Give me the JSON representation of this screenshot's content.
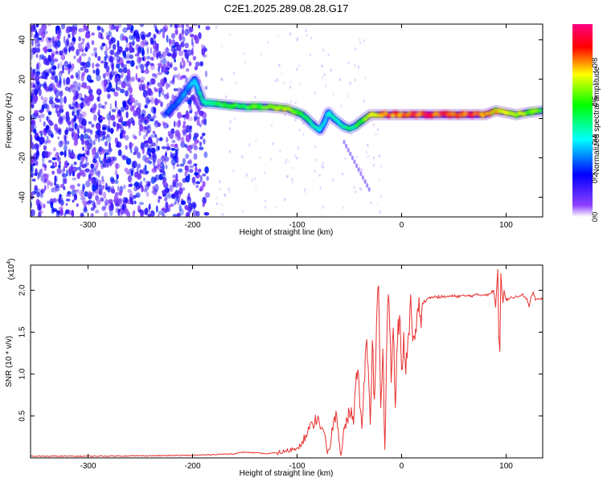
{
  "title": "C2E1.2025.289.08.28.G17",
  "chart_data": [
    {
      "type": "heatmap",
      "title": "C2E1.2025.289.08.28.G17",
      "xlabel": "Height of straight line (km)",
      "ylabel": "Frequency (Hz)",
      "xlim": [
        -355,
        135
      ],
      "ylim": [
        -50,
        48
      ],
      "xticks": [
        -300,
        -200,
        -100,
        0,
        100
      ],
      "xtick_labels": [
        "-300",
        "-200",
        "-100",
        "0",
        "100"
      ],
      "yticks": [
        -40,
        -20,
        0,
        20,
        40
      ],
      "ytick_labels": [
        "-40",
        "-20",
        "0",
        "20",
        "40"
      ],
      "colorbar": {
        "label": "Normalized spectral amplitude",
        "range": [
          0,
          1
        ],
        "ticks": [
          0,
          0.2,
          0.4,
          0.6,
          0.8
        ],
        "tick_labels": [
          "0.0",
          "0.2",
          "0.4",
          "0.6",
          "0.8"
        ],
        "colors": [
          "#ffffff",
          "#5000ff",
          "#0000ff",
          "#00ffff",
          "#00ff00",
          "#ffff00",
          "#ff0000",
          "#ff0080"
        ]
      },
      "track": {
        "x": [
          -225,
          -215,
          -205,
          -198,
          -190,
          -170,
          -150,
          -130,
          -110,
          -95,
          -85,
          -78,
          -74,
          -70,
          -65,
          -60,
          -55,
          -50,
          -45,
          -40,
          -30,
          -20,
          -10,
          0,
          20,
          40,
          60,
          80,
          90,
          100,
          110,
          120,
          135
        ],
        "y": [
          2,
          8,
          15,
          20,
          8,
          7,
          6,
          6,
          5,
          2,
          -3,
          -6,
          -2,
          3,
          0,
          -2,
          -4,
          -5,
          -4,
          -2,
          2,
          2,
          2,
          2,
          2,
          2,
          2,
          2,
          4,
          3,
          2,
          3,
          4
        ],
        "amplitude": [
          0.3,
          0.3,
          0.35,
          0.4,
          0.5,
          0.6,
          0.6,
          0.65,
          0.75,
          0.6,
          0.5,
          0.45,
          0.45,
          0.5,
          0.45,
          0.45,
          0.5,
          0.55,
          0.55,
          0.6,
          0.75,
          0.85,
          0.9,
          0.9,
          0.95,
          0.95,
          0.95,
          0.95,
          0.8,
          0.75,
          0.75,
          0.7,
          0.65
        ]
      }
    },
    {
      "type": "line",
      "xlabel": "Height of straight line (km)",
      "ylabel": "SNR (10 * v/v)",
      "y_multiplier": "(x10",
      "y_multiplier_exp": "4",
      "y_multiplier_close": ")",
      "xlim": [
        -355,
        135
      ],
      "ylim": [
        0,
        2.3
      ],
      "xticks": [
        -300,
        -200,
        -100,
        0,
        100
      ],
      "xtick_labels": [
        "-300",
        "-200",
        "-100",
        "0",
        "100"
      ],
      "yticks": [
        0.5,
        1.0,
        1.5,
        2.0
      ],
      "ytick_labels": [
        "0.5",
        "1.0",
        "1.5",
        "2.0"
      ],
      "series": [
        {
          "name": "SNR",
          "color": "#e8312f",
          "x": [
            -355,
            -300,
            -250,
            -200,
            -180,
            -160,
            -150,
            -140,
            -130,
            -120,
            -110,
            -100,
            -95,
            -90,
            -85,
            -80,
            -77,
            -74,
            -71,
            -68,
            -65,
            -62,
            -60,
            -58,
            -56,
            -54,
            -52,
            -50,
            -48,
            -46,
            -44,
            -42,
            -40,
            -38,
            -36,
            -34,
            -32,
            -30,
            -28,
            -26,
            -24,
            -22,
            -20,
            -18,
            -16,
            -14,
            -12,
            -10,
            -8,
            -6,
            -4,
            -2,
            0,
            2,
            4,
            6,
            8,
            10,
            12,
            14,
            16,
            18,
            20,
            25,
            30,
            40,
            50,
            60,
            70,
            80,
            85,
            88,
            90,
            92,
            93,
            94,
            95,
            96,
            97,
            98,
            100,
            102,
            105,
            110,
            115,
            120,
            122,
            124,
            126,
            128,
            130,
            135
          ],
          "y": [
            0.02,
            0.02,
            0.025,
            0.03,
            0.04,
            0.05,
            0.07,
            0.06,
            0.05,
            0.06,
            0.08,
            0.12,
            0.2,
            0.3,
            0.4,
            0.5,
            0.35,
            0.3,
            0.05,
            0.15,
            0.45,
            0.5,
            0.2,
            0.03,
            0.25,
            0.4,
            0.45,
            0.55,
            0.6,
            0.4,
            0.85,
            1.05,
            0.6,
            0.35,
            0.9,
            1.35,
            1.1,
            0.4,
            1.4,
            0.7,
            1.6,
            2.05,
            0.6,
            1.3,
            0.1,
            1.5,
            1.85,
            0.9,
            1.55,
            0.6,
            1.35,
            1.7,
            1.05,
            1.5,
            1.0,
            1.4,
            1.8,
            1.55,
            1.45,
            1.5,
            1.75,
            1.7,
            1.85,
            1.9,
            1.92,
            1.92,
            1.93,
            1.93,
            1.94,
            1.95,
            1.96,
            2.0,
            1.8,
            2.25,
            1.45,
            1.27,
            2.2,
            1.98,
            1.85,
            2.0,
            1.88,
            1.9,
            1.92,
            1.93,
            1.95,
            1.9,
            1.8,
            1.93,
            1.98,
            1.88,
            1.9,
            1.89
          ]
        }
      ]
    }
  ]
}
